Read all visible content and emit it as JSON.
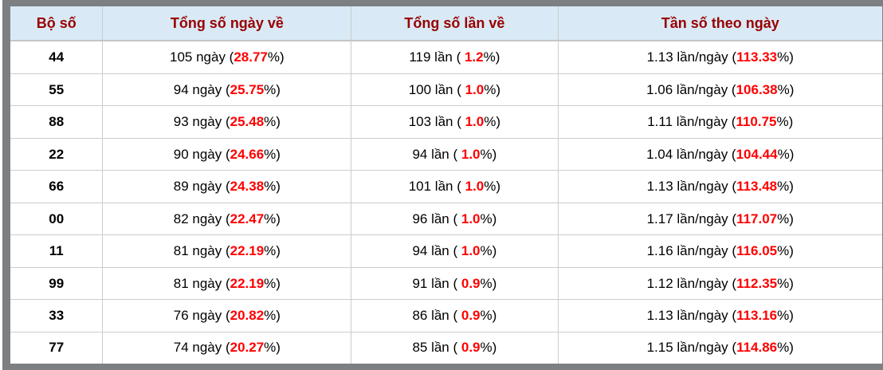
{
  "colors": {
    "frame": "#7d8082",
    "header_bg": "#d9eaf6",
    "header_text": "#990000",
    "highlight_red": "#ff0000",
    "cell_border": "#cccccc",
    "body_text": "#000000"
  },
  "table": {
    "columns": [
      {
        "label": "Bộ số"
      },
      {
        "label": "Tổng số ngày về"
      },
      {
        "label": "Tổng số lần về"
      },
      {
        "label": "Tần số theo ngày"
      }
    ],
    "rows": [
      {
        "pair": "44",
        "days": {
          "pre": "105 ngày (",
          "val": "28.77",
          "post": "%)"
        },
        "times": {
          "pre": "119 lần ( ",
          "val": "1.2",
          "post": "%)"
        },
        "freq": {
          "pre": "1.13 lần/ngày (",
          "val": "113.33",
          "post": "%)"
        }
      },
      {
        "pair": "55",
        "days": {
          "pre": "94 ngày (",
          "val": "25.75",
          "post": "%)"
        },
        "times": {
          "pre": "100 lần ( ",
          "val": "1.0",
          "post": "%)"
        },
        "freq": {
          "pre": "1.06 lần/ngày (",
          "val": "106.38",
          "post": "%)"
        }
      },
      {
        "pair": "88",
        "days": {
          "pre": "93 ngày (",
          "val": "25.48",
          "post": "%)"
        },
        "times": {
          "pre": "103 lần ( ",
          "val": "1.0",
          "post": "%)"
        },
        "freq": {
          "pre": "1.11 lần/ngày (",
          "val": "110.75",
          "post": "%)"
        }
      },
      {
        "pair": "22",
        "days": {
          "pre": "90 ngày (",
          "val": "24.66",
          "post": "%)"
        },
        "times": {
          "pre": "94 lần ( ",
          "val": "1.0",
          "post": "%)"
        },
        "freq": {
          "pre": "1.04 lần/ngày (",
          "val": "104.44",
          "post": "%)"
        }
      },
      {
        "pair": "66",
        "days": {
          "pre": "89 ngày (",
          "val": "24.38",
          "post": "%)"
        },
        "times": {
          "pre": "101 lần ( ",
          "val": "1.0",
          "post": "%)"
        },
        "freq": {
          "pre": "1.13 lần/ngày (",
          "val": "113.48",
          "post": "%)"
        }
      },
      {
        "pair": "00",
        "days": {
          "pre": "82 ngày (",
          "val": "22.47",
          "post": "%)"
        },
        "times": {
          "pre": "96 lần ( ",
          "val": "1.0",
          "post": "%)"
        },
        "freq": {
          "pre": "1.17 lần/ngày (",
          "val": "117.07",
          "post": "%)"
        }
      },
      {
        "pair": "11",
        "days": {
          "pre": "81 ngày (",
          "val": "22.19",
          "post": "%)"
        },
        "times": {
          "pre": "94 lần ( ",
          "val": "1.0",
          "post": "%)"
        },
        "freq": {
          "pre": "1.16 lần/ngày (",
          "val": "116.05",
          "post": "%)"
        }
      },
      {
        "pair": "99",
        "days": {
          "pre": "81 ngày (",
          "val": "22.19",
          "post": "%)"
        },
        "times": {
          "pre": "91 lần ( ",
          "val": "0.9",
          "post": "%)"
        },
        "freq": {
          "pre": "1.12 lần/ngày (",
          "val": "112.35",
          "post": "%)"
        }
      },
      {
        "pair": "33",
        "days": {
          "pre": "76 ngày (",
          "val": "20.82",
          "post": "%)"
        },
        "times": {
          "pre": "86 lần ( ",
          "val": "0.9",
          "post": "%)"
        },
        "freq": {
          "pre": "1.13 lần/ngày (",
          "val": "113.16",
          "post": "%)"
        }
      },
      {
        "pair": "77",
        "days": {
          "pre": "74 ngày (",
          "val": "20.27",
          "post": "%)"
        },
        "times": {
          "pre": "85 lần ( ",
          "val": "0.9",
          "post": "%)"
        },
        "freq": {
          "pre": "1.15 lần/ngày (",
          "val": "114.86",
          "post": "%)"
        }
      }
    ]
  }
}
